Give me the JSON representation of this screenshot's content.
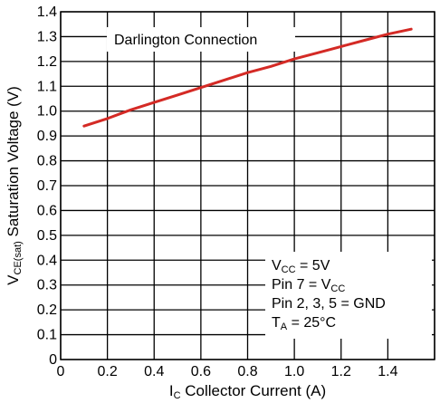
{
  "chart_data": {
    "type": "line",
    "xlabel": {
      "main": "I",
      "sub": "C",
      "rest": " Collector Current (A)"
    },
    "ylabel": {
      "main": "V",
      "sub": "CE(sat)",
      "rest": " Saturation Voltage (V)"
    },
    "xlim": [
      0,
      1.6
    ],
    "ylim": [
      0,
      1.4
    ],
    "xticks": [
      0,
      0.2,
      0.4,
      0.6,
      0.8,
      1.0,
      1.2,
      1.4
    ],
    "xtick_labels": [
      "0",
      "0.2",
      "0.4",
      "0.6",
      "0.8",
      "1.0",
      "1.2",
      "1.4"
    ],
    "yticks": [
      0,
      0.1,
      0.2,
      0.3,
      0.4,
      0.5,
      0.6,
      0.7,
      0.8,
      0.9,
      1.0,
      1.1,
      1.2,
      1.3,
      1.4
    ],
    "ytick_labels": [
      "0",
      "0.1",
      "0.2",
      "0.3",
      "0.4",
      "0.5",
      "0.6",
      "0.7",
      "0.8",
      "0.9",
      "1.0",
      "1.1",
      "1.2",
      "1.3",
      "1.4"
    ],
    "grid": true,
    "series": [
      {
        "color": "#d42a25",
        "x": [
          0.1,
          0.2,
          0.3,
          0.4,
          0.5,
          0.6,
          0.7,
          0.8,
          0.9,
          1.0,
          1.1,
          1.2,
          1.3,
          1.4,
          1.5
        ],
        "y": [
          0.94,
          0.97,
          1.005,
          1.035,
          1.065,
          1.095,
          1.125,
          1.155,
          1.18,
          1.21,
          1.235,
          1.26,
          1.285,
          1.31,
          1.33
        ]
      }
    ],
    "annotations": {
      "title_box": "Darlington Connection",
      "conditions": [
        {
          "main": "V",
          "sub": "CC",
          "rest": " = 5V"
        },
        {
          "main": "Pin 7 = V",
          "sub": "CC",
          "rest": ""
        },
        {
          "main": "Pin 2, 3, 5 = GND",
          "sub": "",
          "rest": ""
        },
        {
          "main": "T",
          "sub": "A",
          "rest": " = 25°C"
        }
      ]
    }
  }
}
